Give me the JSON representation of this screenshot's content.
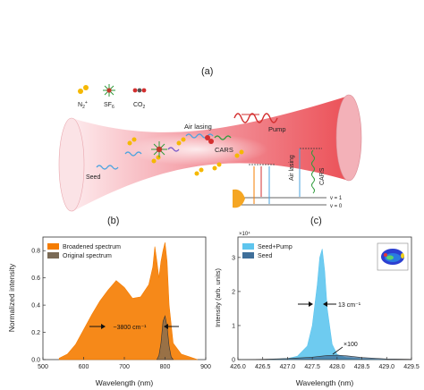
{
  "panels": {
    "a": {
      "label": "(a)",
      "legend": {
        "n2": "N",
        "n2_sub": "2",
        "n2_sup": "+",
        "sf6": "SF",
        "sf6_sub": "6",
        "co2": "CO",
        "co2_sub": "2"
      },
      "labels": {
        "seed": "Seed",
        "air_lasing": "Air lasing",
        "cars": "CARS",
        "pump": "Pump",
        "v1": "v = 1",
        "v0": "v = 0",
        "air_lasing_vert": "Air lasing",
        "cars_vert": "CARS"
      },
      "colors": {
        "beam": "#e8323a",
        "seed": "#4aa3df",
        "cars": "#2e9b3a",
        "pump": "#d32f2f"
      }
    },
    "b": {
      "label": "(b)",
      "annotation": "~3800 cm⁻¹"
    },
    "c": {
      "label": "(c)",
      "annotation_width": "13 cm⁻¹",
      "annotation_scale": "×100",
      "exponent": "×10⁴"
    }
  },
  "chart_data": [
    {
      "type": "area",
      "panel": "b",
      "xlabel": "Wavelength (nm)",
      "ylabel": "Normalized intensity",
      "xlim": [
        500,
        900
      ],
      "ylim": [
        0,
        0.9
      ],
      "xticks": [
        "500",
        "600",
        "700",
        "800",
        "900"
      ],
      "yticks": [
        "0.0",
        "0.2",
        "0.4",
        "0.6",
        "0.8"
      ],
      "legend_position": "top-left",
      "series": [
        {
          "name": "Broadened spectrum",
          "color": "#f57c00",
          "x": [
            540,
            560,
            580,
            600,
            620,
            640,
            660,
            680,
            700,
            720,
            740,
            760,
            770,
            775,
            780,
            785,
            790,
            795,
            800,
            805,
            810,
            820,
            840,
            860,
            880
          ],
          "y": [
            0.01,
            0.04,
            0.11,
            0.22,
            0.33,
            0.43,
            0.51,
            0.58,
            0.53,
            0.45,
            0.46,
            0.55,
            0.68,
            0.83,
            0.72,
            0.6,
            0.72,
            0.8,
            0.86,
            0.72,
            0.4,
            0.12,
            0.04,
            0.02,
            0.0
          ]
        },
        {
          "name": "Original spectrum",
          "color": "#7a6a55",
          "x": [
            780,
            785,
            790,
            795,
            800,
            805,
            810,
            815,
            820
          ],
          "y": [
            0.0,
            0.03,
            0.12,
            0.28,
            0.32,
            0.24,
            0.1,
            0.02,
            0.0
          ]
        }
      ]
    },
    {
      "type": "area",
      "panel": "c",
      "xlabel": "Wavelength (nm)",
      "ylabel": "Intensity (arb. units)",
      "xlim": [
        426.0,
        429.5
      ],
      "ylim": [
        0,
        3.6
      ],
      "xticks": [
        "426.0",
        "426.5",
        "427.0",
        "427.5",
        "428.0",
        "428.5",
        "429.0",
        "429.5"
      ],
      "yticks": [
        "0",
        "1",
        "2",
        "3"
      ],
      "legend_position": "top-left",
      "series": [
        {
          "name": "Seed+Pump",
          "color": "#5ec5ee",
          "x": [
            426.6,
            427.0,
            427.2,
            427.4,
            427.5,
            427.6,
            427.65,
            427.7,
            427.75,
            427.8,
            427.9,
            428.0,
            428.2,
            428.5,
            429.0
          ],
          "y": [
            0.0,
            0.03,
            0.1,
            0.4,
            1.0,
            2.2,
            3.0,
            3.25,
            2.6,
            1.5,
            0.45,
            0.15,
            0.05,
            0.02,
            0.0
          ]
        },
        {
          "name": "Seed",
          "color": "#3f6f9a",
          "x": [
            426.0,
            426.5,
            427.0,
            427.5,
            427.8,
            428.0,
            428.2,
            428.5,
            429.0,
            429.5
          ],
          "y": [
            0.0,
            0.01,
            0.03,
            0.07,
            0.12,
            0.13,
            0.11,
            0.06,
            0.02,
            0.01
          ]
        }
      ]
    }
  ]
}
